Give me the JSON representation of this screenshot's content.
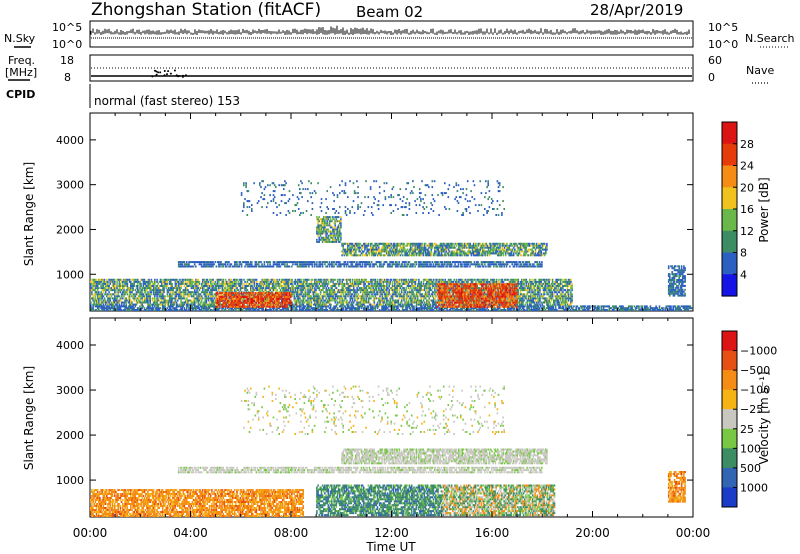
{
  "header": {
    "station": "Zhongshan Station (fitACF)",
    "beam": "Beam 02",
    "date": "28/Apr/2019"
  },
  "strips": {
    "nsky_label": "N.Sky",
    "nsky_ticks": [
      "10^5",
      "10^0"
    ],
    "nsearch_label": "N.Search",
    "nsearch_ticks": [
      "10^5",
      "10^0"
    ],
    "freq_label_1": "Freq.",
    "freq_label_2": "[MHz]",
    "freq_ticks": [
      "18",
      "8"
    ],
    "nave_label": "Nave",
    "nave_ticks": [
      "60",
      "0"
    ],
    "cpid_label": "CPID",
    "cpid_text": "normal (fast stereo) 153"
  },
  "chart_data": [
    {
      "type": "heatmap",
      "name": "power-panel",
      "ylabel": "Slant Range [km]",
      "y_ticks": [
        "1000",
        "2000",
        "3000",
        "4000"
      ],
      "y_tick_values": [
        1000,
        2000,
        3000,
        4000
      ],
      "ylim": [
        180,
        4600
      ],
      "xlim_hours": [
        0,
        24
      ],
      "colorbar_label": "Power [dB]",
      "colorbar_ticks": [
        "4",
        "8",
        "12",
        "16",
        "20",
        "24",
        "28"
      ],
      "colorbar_colors": [
        "#1414e6",
        "#2c5fc2",
        "#3c8c64",
        "#6ab84a",
        "#f0c21e",
        "#f58c14",
        "#e63c0a",
        "#dc1414"
      ],
      "data_regions": [
        {
          "t0": 0.0,
          "t1": 24.0,
          "r0": 180,
          "r1": 300,
          "level": "low"
        },
        {
          "t0": 0.0,
          "t1": 19.2,
          "r0": 300,
          "r1": 900,
          "level": "mid"
        },
        {
          "t0": 5.0,
          "t1": 8.0,
          "r0": 250,
          "r1": 600,
          "level": "high"
        },
        {
          "t0": 13.8,
          "t1": 17.0,
          "r0": 250,
          "r1": 800,
          "level": "high"
        },
        {
          "t0": 3.5,
          "t1": 18.0,
          "r0": 1150,
          "r1": 1300,
          "level": "low"
        },
        {
          "t0": 10.0,
          "t1": 18.2,
          "r0": 1400,
          "r1": 1700,
          "level": "mid"
        },
        {
          "t0": 9.0,
          "t1": 10.0,
          "r0": 1700,
          "r1": 2300,
          "level": "mid"
        },
        {
          "t0": 6.0,
          "t1": 16.5,
          "r0": 2300,
          "r1": 3100,
          "level": "sparse"
        },
        {
          "t0": 23.0,
          "t1": 23.7,
          "r0": 500,
          "r1": 1200,
          "level": "low"
        }
      ]
    },
    {
      "type": "heatmap",
      "name": "velocity-panel",
      "ylabel": "Slant Range [km]",
      "y_ticks": [
        "1000",
        "2000",
        "3000",
        "4000"
      ],
      "y_tick_values": [
        1000,
        2000,
        3000,
        4000
      ],
      "ylim": [
        180,
        4600
      ],
      "xlim_hours": [
        0,
        24
      ],
      "x_ticks": [
        "00:00",
        "04:00",
        "08:00",
        "12:00",
        "16:00",
        "20:00",
        "00:00"
      ],
      "xlabel": "Time UT",
      "colorbar_label": "Velocity [m s⁻¹]",
      "colorbar_ticks": [
        "1000",
        "500",
        "100",
        "25",
        "−25",
        "−100",
        "−500",
        "−1000"
      ],
      "colorbar_colors": [
        "#1a3cc8",
        "#3264b4",
        "#3c8c64",
        "#78c846",
        "#c8c8c0",
        "#f5b414",
        "#f58c14",
        "#e65014",
        "#dc1414"
      ],
      "data_regions": [
        {
          "t0": 0.0,
          "t1": 8.5,
          "r0": 180,
          "r1": 800,
          "level": "neg"
        },
        {
          "t0": 9.0,
          "t1": 14.0,
          "r0": 200,
          "r1": 900,
          "level": "pos"
        },
        {
          "t0": 3.5,
          "t1": 18.0,
          "r0": 1150,
          "r1": 1300,
          "level": "zero"
        },
        {
          "t0": 10.0,
          "t1": 18.2,
          "r0": 1350,
          "r1": 1700,
          "level": "zero"
        },
        {
          "t0": 14.0,
          "t1": 18.5,
          "r0": 200,
          "r1": 900,
          "level": "mixed"
        },
        {
          "t0": 6.0,
          "t1": 16.5,
          "r0": 2000,
          "r1": 3100,
          "level": "sparse"
        },
        {
          "t0": 23.0,
          "t1": 23.7,
          "r0": 500,
          "r1": 1200,
          "level": "neg"
        }
      ]
    }
  ]
}
